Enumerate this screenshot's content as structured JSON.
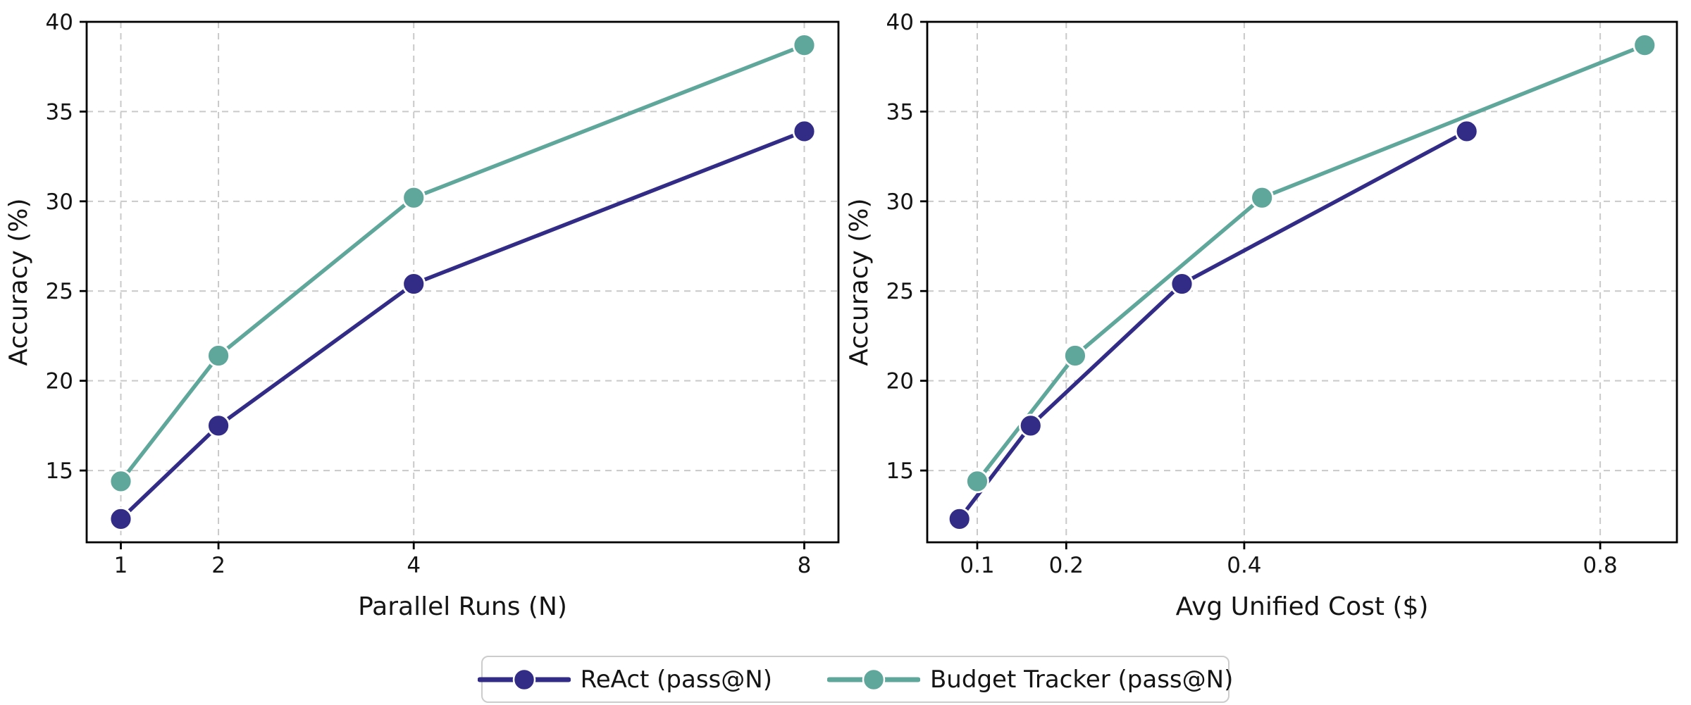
{
  "figure": {
    "background": "#ffffff"
  },
  "colors": {
    "react": "#332C87",
    "budget_tracker": "#60A79B",
    "grid": "#c9c9c9",
    "spine": "#000000",
    "text": "#141414",
    "marker_edge": "#ffffff",
    "legend_border": "#cccccc"
  },
  "chart_data": [
    {
      "type": "line",
      "title": "",
      "xlabel": "Parallel Runs (N)",
      "ylabel": "Accuracy (%)",
      "xlim": [
        0.65,
        8.35
      ],
      "ylim": [
        11,
        40
      ],
      "grid": "dashed",
      "legend_position": "figure-bottom-center",
      "xticks": {
        "values": [
          1,
          2,
          4,
          8
        ],
        "labels": [
          "1",
          "2",
          "4",
          "8"
        ]
      },
      "yticks": {
        "values": [
          15,
          20,
          25,
          30,
          35,
          40
        ],
        "labels": [
          "15",
          "20",
          "25",
          "30",
          "35",
          "40"
        ]
      },
      "series": [
        {
          "name": "ReAct (pass@N)",
          "color": "#332C87",
          "x": [
            1,
            2,
            4,
            8
          ],
          "y": [
            12.3,
            17.5,
            25.4,
            33.9
          ]
        },
        {
          "name": "Budget Tracker (pass@N)",
          "color": "#60A79B",
          "x": [
            1,
            2,
            4,
            8
          ],
          "y": [
            14.4,
            21.4,
            30.2,
            38.7
          ]
        }
      ]
    },
    {
      "type": "line",
      "title": "",
      "xlabel": "Avg Unified Cost ($)",
      "ylabel": "Accuracy (%)",
      "xlim": [
        0.0438,
        0.8862
      ],
      "ylim": [
        11,
        40
      ],
      "grid": "dashed",
      "legend_position": "figure-bottom-center",
      "xticks": {
        "values": [
          0.1,
          0.2,
          0.4,
          0.8
        ],
        "labels": [
          "0.1",
          "0.2",
          "0.4",
          "0.8"
        ]
      },
      "yticks": {
        "values": [
          15,
          20,
          25,
          30,
          35,
          40
        ],
        "labels": [
          "15",
          "20",
          "25",
          "30",
          "35",
          "40"
        ]
      },
      "series": [
        {
          "name": "ReAct (pass@N)",
          "color": "#332C87",
          "x": [
            0.08,
            0.16,
            0.33,
            0.65
          ],
          "y": [
            12.3,
            17.5,
            25.4,
            33.9
          ]
        },
        {
          "name": "Budget Tracker (pass@N)",
          "color": "#60A79B",
          "x": [
            0.1,
            0.21,
            0.42,
            0.85
          ],
          "y": [
            14.4,
            21.4,
            30.2,
            38.7
          ]
        }
      ]
    }
  ],
  "legend": {
    "entries": [
      {
        "label": "ReAct (pass@N)",
        "color": "#332C87"
      },
      {
        "label": "Budget Tracker (pass@N)",
        "color": "#60A79B"
      }
    ]
  }
}
